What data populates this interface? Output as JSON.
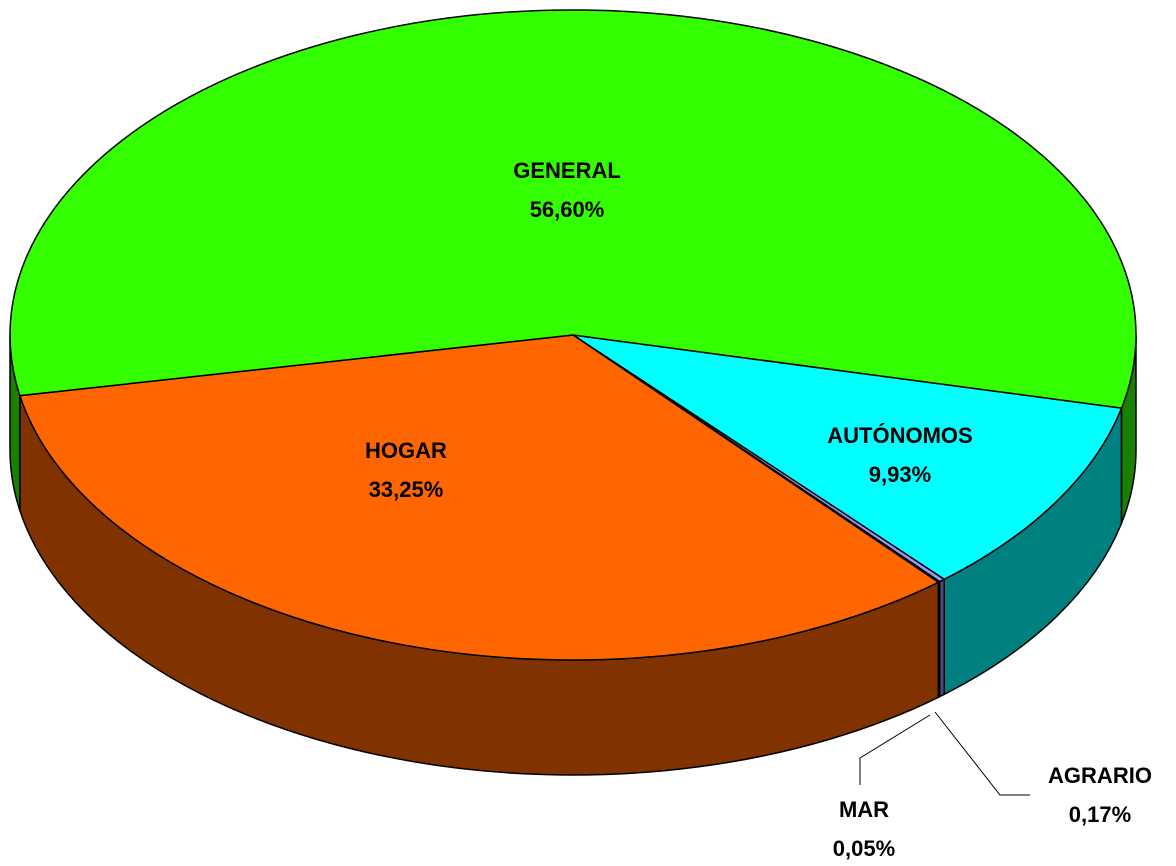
{
  "chart_data": {
    "type": "pie",
    "categories": [
      "AUTÓNOMOS",
      "AGRARIO",
      "MAR",
      "HOGAR",
      "GENERAL"
    ],
    "values": [
      9.93,
      0.17,
      0.05,
      33.25,
      56.6
    ],
    "value_labels": [
      "9,93%",
      "0,17%",
      "0,05%",
      "33,25%",
      "56,60%"
    ],
    "colors": [
      "#00ffff",
      "#9999ff",
      "#993366",
      "#ff6600",
      "#33ff00"
    ],
    "style": "3d"
  }
}
